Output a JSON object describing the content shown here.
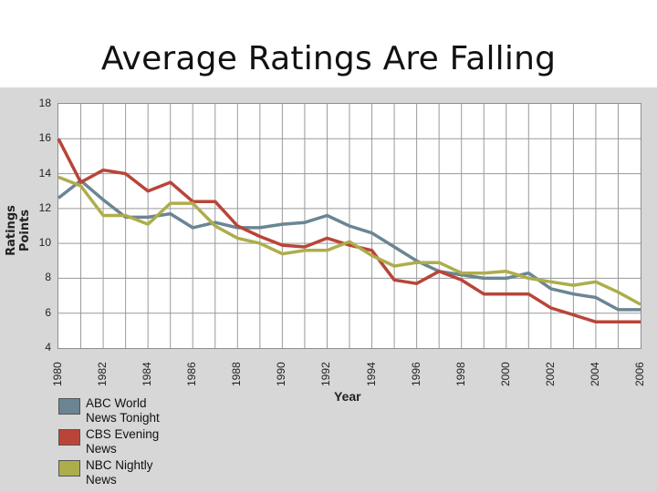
{
  "title": "Average Ratings Are Falling",
  "chart_data": {
    "type": "line",
    "title": "Average Ratings Are Falling",
    "xlabel": "Year",
    "ylabel": "Ratings Points",
    "ylim": [
      4,
      18
    ],
    "xlim": [
      1980,
      2006
    ],
    "yticks": [
      "4",
      "6",
      "8",
      "10",
      "12",
      "14",
      "16",
      "18"
    ],
    "xticks": [
      "1980",
      "1982",
      "1984",
      "1986",
      "1988",
      "1990",
      "1992",
      "1994",
      "1996",
      "1998",
      "2000",
      "2002",
      "2004",
      "2006"
    ],
    "x": [
      1980,
      1981,
      1982,
      1983,
      1984,
      1985,
      1986,
      1987,
      1988,
      1989,
      1990,
      1991,
      1992,
      1993,
      1994,
      1995,
      1996,
      1997,
      1998,
      1999,
      2000,
      2001,
      2002,
      2003,
      2004,
      2005,
      2006
    ],
    "series": [
      {
        "name": "ABC World News Tonight",
        "color": "#6b8594",
        "values": [
          12.6,
          13.6,
          12.5,
          11.5,
          11.5,
          11.7,
          10.9,
          11.2,
          10.9,
          10.9,
          11.1,
          11.2,
          11.6,
          11.0,
          10.6,
          9.8,
          9.0,
          8.4,
          8.2,
          8.0,
          8.0,
          8.3,
          7.4,
          7.1,
          6.9,
          6.2,
          6.2
        ]
      },
      {
        "name": "CBS Evening News",
        "color": "#b84538",
        "values": [
          16.0,
          13.5,
          14.2,
          14.0,
          13.0,
          13.5,
          12.4,
          12.4,
          11.0,
          10.4,
          9.9,
          9.8,
          10.3,
          9.9,
          9.6,
          7.9,
          7.7,
          8.4,
          7.9,
          7.1,
          7.1,
          7.1,
          6.3,
          5.9,
          5.5,
          5.5,
          5.5
        ]
      },
      {
        "name": "NBC Nightly News",
        "color": "#adad4c",
        "values": [
          13.8,
          13.3,
          11.6,
          11.6,
          11.1,
          12.3,
          12.3,
          11.0,
          10.3,
          10.0,
          9.4,
          9.6,
          9.6,
          10.1,
          9.3,
          8.7,
          8.9,
          8.9,
          8.3,
          8.3,
          8.4,
          8.0,
          7.8,
          7.6,
          7.8,
          7.2,
          6.5
        ]
      }
    ],
    "legend": {
      "position": "bottom-left",
      "entries": [
        {
          "line1": "ABC World",
          "line2": "News Tonight",
          "color": "#6b8594"
        },
        {
          "line1": "CBS Evening",
          "line2": "News",
          "color": "#b84538"
        },
        {
          "line1": "NBC Nightly",
          "line2": "News",
          "color": "#adad4c"
        }
      ]
    },
    "grid": true
  }
}
